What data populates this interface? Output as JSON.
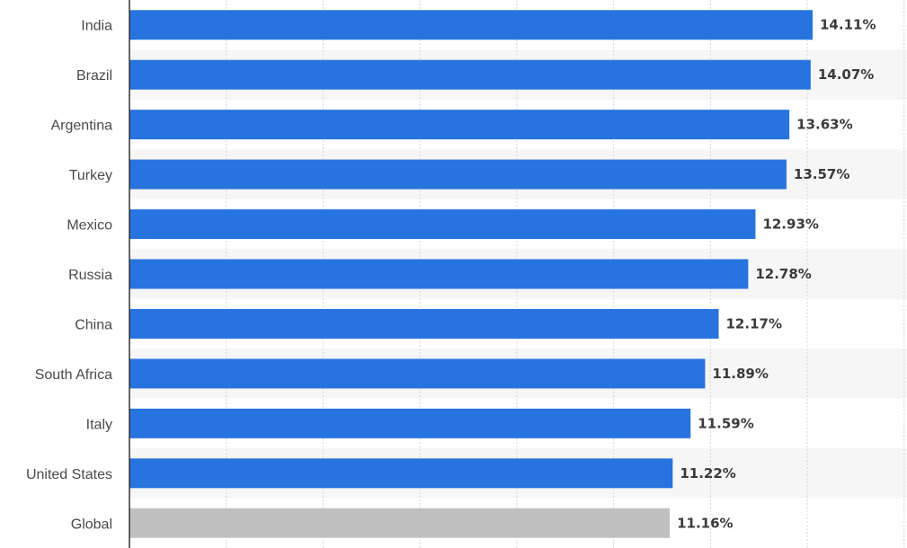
{
  "chart_data": {
    "type": "bar",
    "orientation": "horizontal",
    "categories": [
      "India",
      "Brazil",
      "Argentina",
      "Turkey",
      "Mexico",
      "Russia",
      "China",
      "South Africa",
      "Italy",
      "United States",
      "Global"
    ],
    "values": [
      14.11,
      14.07,
      13.63,
      13.57,
      12.93,
      12.78,
      12.17,
      11.89,
      11.59,
      11.22,
      11.16
    ],
    "value_labels": [
      "14.11%",
      "14.07%",
      "13.63%",
      "13.57%",
      "12.93%",
      "12.78%",
      "12.17%",
      "11.89%",
      "11.59%",
      "11.22%",
      "11.16%"
    ],
    "value_unit": "%",
    "xlim": [
      0,
      16
    ],
    "grid": true,
    "title": "",
    "xlabel": "",
    "ylabel": "",
    "colors": {
      "bar": "#2874de",
      "highlight_bar": "#c0c0c0",
      "band": "#f6f6f6",
      "grid": "#d6d6d6",
      "axis": "#333333"
    },
    "highlight_category": "Global"
  }
}
